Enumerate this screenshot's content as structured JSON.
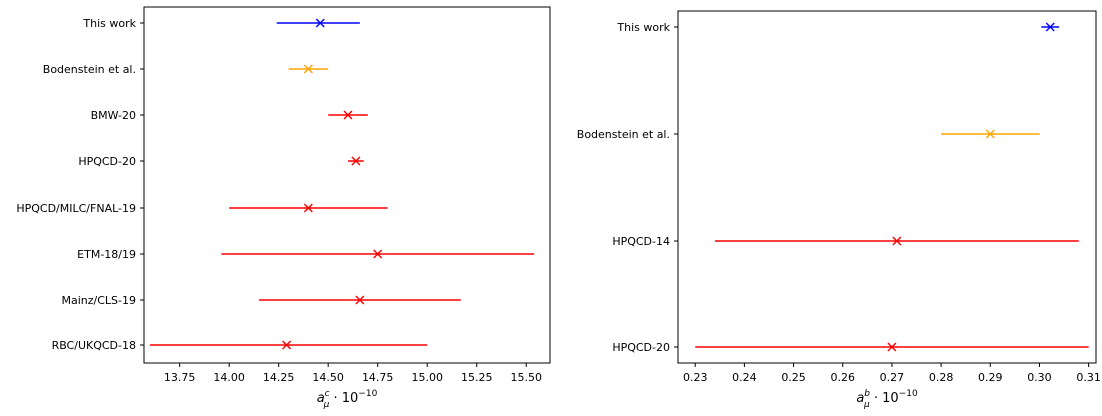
{
  "chart_data": [
    {
      "type": "errorbar",
      "xlabel_base": "a",
      "xlabel_sup": "c",
      "xlabel_sub": "μ",
      "xlabel_rest": " · 10",
      "xlabel_exp": "−10",
      "xlim": [
        13.57,
        15.62
      ],
      "xticks": [
        "13.75",
        "14.00",
        "14.25",
        "14.50",
        "14.75",
        "15.00",
        "15.25",
        "15.50"
      ],
      "xtick_values": [
        13.75,
        14.0,
        14.25,
        14.5,
        14.75,
        15.0,
        15.25,
        15.5
      ],
      "categories": [
        "This work",
        "Bodenstein et al.",
        "BMW-20",
        "HPQCD-20",
        "HPQCD/MILC/FNAL-19",
        "ETM-18/19",
        "Mainz/CLS-19",
        "RBC/UKQCD-18"
      ],
      "points": [
        {
          "label": "This work",
          "value": 14.46,
          "low": 14.24,
          "high": 14.66,
          "color": "#0000ff"
        },
        {
          "label": "Bodenstein et al.",
          "value": 14.4,
          "low": 14.3,
          "high": 14.5,
          "color": "#ffa500"
        },
        {
          "label": "BMW-20",
          "value": 14.6,
          "low": 14.5,
          "high": 14.7,
          "color": "#ff0000"
        },
        {
          "label": "HPQCD-20",
          "value": 14.64,
          "low": 14.6,
          "high": 14.68,
          "color": "#ff0000"
        },
        {
          "label": "HPQCD/MILC/FNAL-19",
          "value": 14.4,
          "low": 14.0,
          "high": 14.8,
          "color": "#ff0000"
        },
        {
          "label": "ETM-18/19",
          "value": 14.75,
          "low": 13.96,
          "high": 15.54,
          "color": "#ff0000"
        },
        {
          "label": "Mainz/CLS-19",
          "value": 14.66,
          "low": 14.15,
          "high": 15.17,
          "color": "#ff0000"
        },
        {
          "label": "RBC/UKQCD-18",
          "value": 14.29,
          "low": 13.6,
          "high": 15.0,
          "color": "#ff0000"
        }
      ]
    },
    {
      "type": "errorbar",
      "xlabel_base": "a",
      "xlabel_sup": "b",
      "xlabel_sub": "μ",
      "xlabel_rest": " · 10",
      "xlabel_exp": "−10",
      "xlim": [
        0.2265,
        0.3115
      ],
      "xticks": [
        "0.23",
        "0.24",
        "0.25",
        "0.26",
        "0.27",
        "0.28",
        "0.29",
        "0.30",
        "0.31"
      ],
      "xtick_values": [
        0.23,
        0.24,
        0.25,
        0.26,
        0.27,
        0.28,
        0.29,
        0.3,
        0.31
      ],
      "categories": [
        "This work",
        "Bodenstein et al.",
        "HPQCD-14",
        "HPQCD-20"
      ],
      "points": [
        {
          "label": "This work",
          "value": 0.3022,
          "low": 0.3004,
          "high": 0.304,
          "color": "#0000ff"
        },
        {
          "label": "Bodenstein et al.",
          "value": 0.29,
          "low": 0.28,
          "high": 0.3,
          "color": "#ffa500"
        },
        {
          "label": "HPQCD-14",
          "value": 0.271,
          "low": 0.234,
          "high": 0.308,
          "color": "#ff0000"
        },
        {
          "label": "HPQCD-20",
          "value": 0.27,
          "low": 0.23,
          "high": 0.31,
          "color": "#ff0000"
        }
      ]
    }
  ]
}
